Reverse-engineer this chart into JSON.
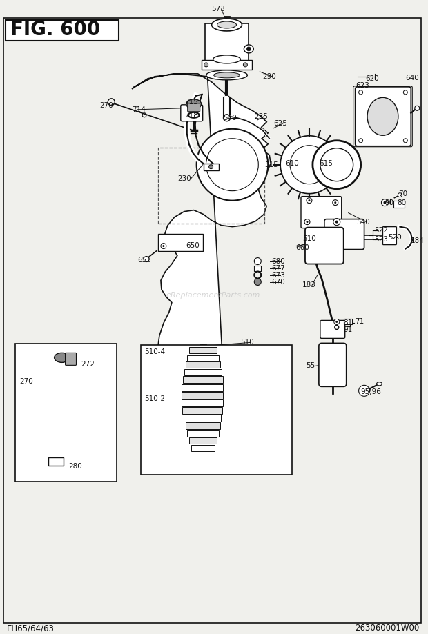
{
  "title": "FIG. 600",
  "footer_left": "EH65/64/63",
  "footer_right": "263060001W00",
  "bg_color": "#f0f0ec",
  "border_color": "#111111",
  "text_color": "#111111",
  "fig_width": 6.2,
  "fig_height": 9.19,
  "title_fontsize": 20,
  "label_fontsize": 7.5,
  "footer_fontsize": 8.5,
  "watermark": "eReplacementParts.com"
}
